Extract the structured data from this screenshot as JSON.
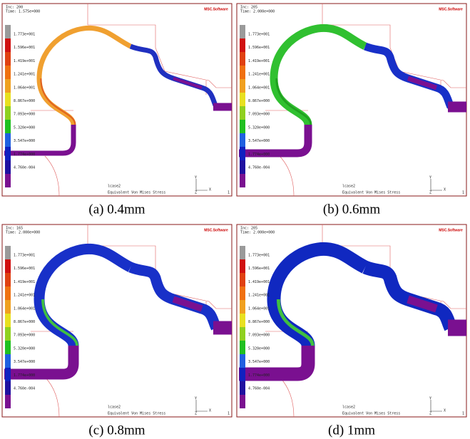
{
  "logo": "MSC.Software",
  "legend_labels": [
    "1.773e+001",
    "1.596e+001",
    "1.419e+001",
    "1.241e+001",
    "1.064e+001",
    "8.867e+000",
    "7.093e+000",
    "5.320e+000",
    "3.547e+000",
    "1.774e+000",
    "4.760e-004"
  ],
  "footer": {
    "case": "lcase2",
    "quantity": "Equivalent Von Mises Stress",
    "index": "1"
  },
  "axes": {
    "y": "Y",
    "x": "X",
    "z": "Z"
  },
  "panels": [
    {
      "inc": "Inc: 200",
      "time": "Time: 1.575e+000",
      "caption": "(a)  0.4mm"
    },
    {
      "inc": "Inc: 205",
      "time": "Time: 2.000e+000",
      "caption": "(b)  0.6mm"
    },
    {
      "inc": "Inc: 165",
      "time": "Time: 2.000e+000",
      "caption": "(c) 0.8mm"
    },
    {
      "inc": "Inc: 205",
      "time": "Time: 2.000e+000",
      "caption": "(d)  1mm"
    }
  ]
}
